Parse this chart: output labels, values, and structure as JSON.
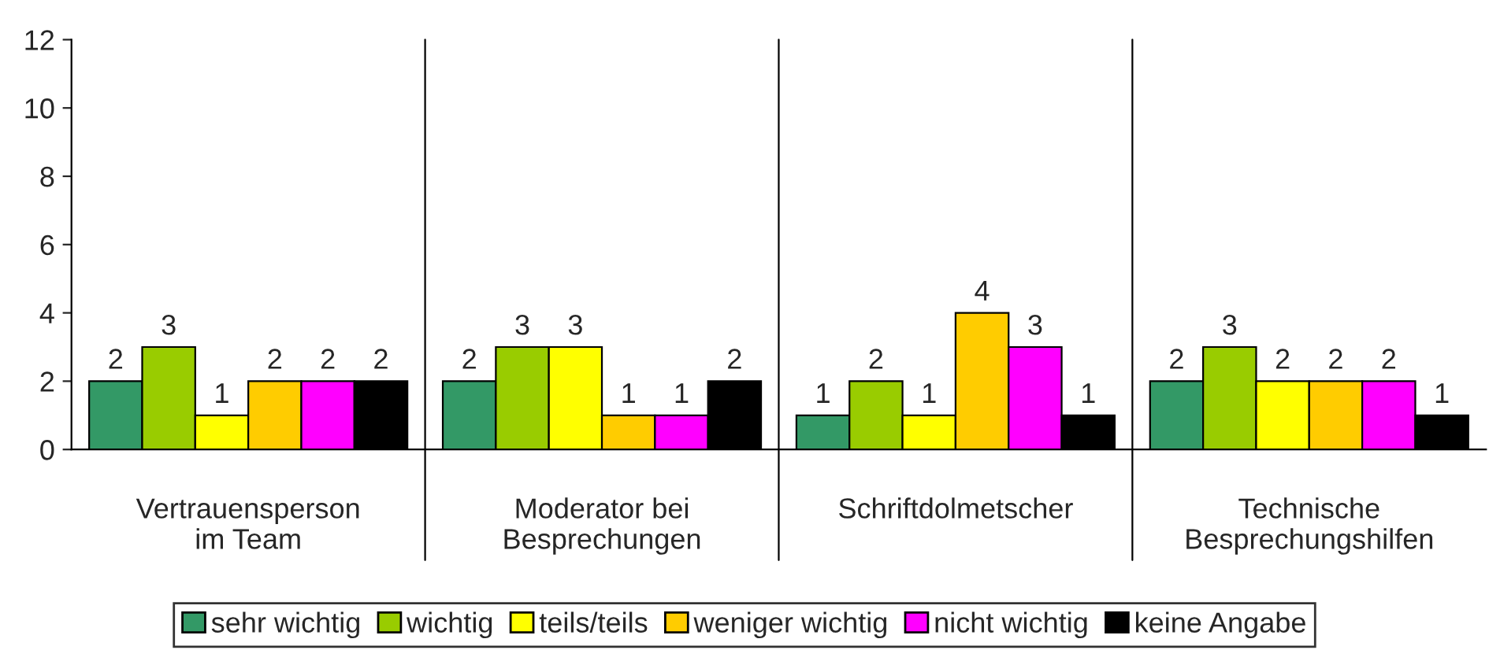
{
  "chart_data": {
    "type": "bar",
    "categories": [
      "Vertrauensperson\nim Team",
      "Moderator bei\nBesprechungen",
      "Schriftdolmetscher",
      "Technische\nBesprechungshilfen"
    ],
    "series": [
      {
        "name": "sehr wichtig",
        "color": "#339966",
        "values": [
          2,
          2,
          1,
          2
        ]
      },
      {
        "name": "wichtig",
        "color": "#99cc00",
        "values": [
          3,
          3,
          2,
          3
        ]
      },
      {
        "name": "teils/teils",
        "color": "#ffff00",
        "values": [
          1,
          3,
          1,
          2
        ]
      },
      {
        "name": "weniger wichtig",
        "color": "#ffcc00",
        "values": [
          2,
          1,
          4,
          2
        ]
      },
      {
        "name": "nicht wichtig",
        "color": "#ff00ff",
        "values": [
          2,
          1,
          3,
          2
        ]
      },
      {
        "name": "keine Angabe",
        "color": "#000000",
        "values": [
          2,
          2,
          1,
          1
        ]
      }
    ],
    "ylim": [
      0,
      12
    ],
    "yticks": [
      0,
      2,
      4,
      6,
      8,
      10,
      12
    ],
    "data_labels": true,
    "grid": false,
    "legend": "bottom"
  }
}
